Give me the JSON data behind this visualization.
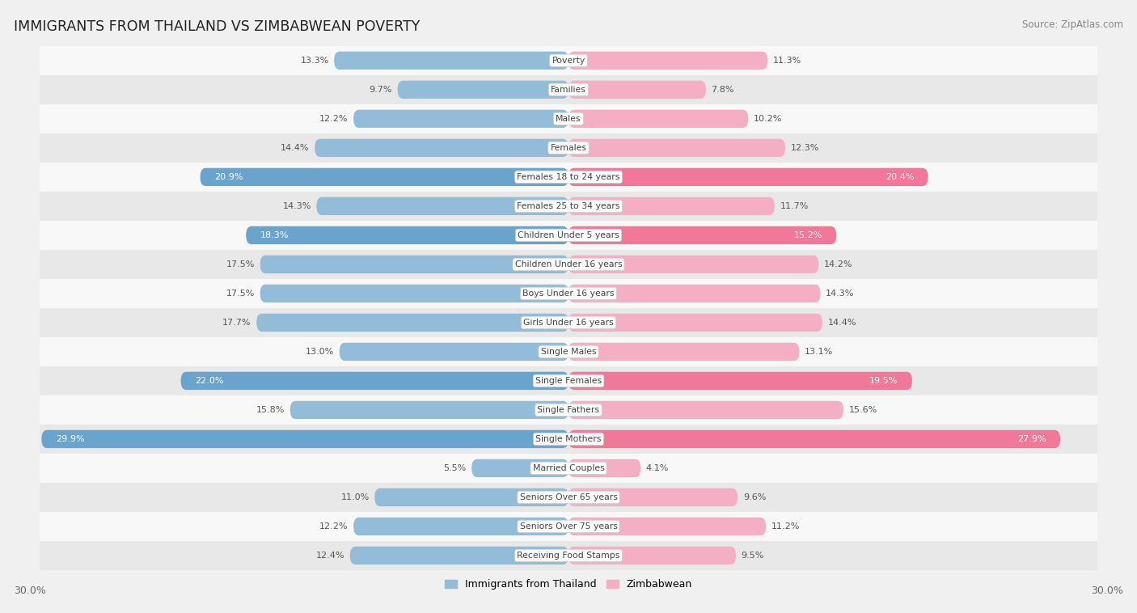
{
  "title": "IMMIGRANTS FROM THAILAND VS ZIMBABWEAN POVERTY",
  "source": "Source: ZipAtlas.com",
  "categories": [
    "Poverty",
    "Families",
    "Males",
    "Females",
    "Females 18 to 24 years",
    "Females 25 to 34 years",
    "Children Under 5 years",
    "Children Under 16 years",
    "Boys Under 16 years",
    "Girls Under 16 years",
    "Single Males",
    "Single Females",
    "Single Fathers",
    "Single Mothers",
    "Married Couples",
    "Seniors Over 65 years",
    "Seniors Over 75 years",
    "Receiving Food Stamps"
  ],
  "thailand_values": [
    13.3,
    9.7,
    12.2,
    14.4,
    20.9,
    14.3,
    18.3,
    17.5,
    17.5,
    17.7,
    13.0,
    22.0,
    15.8,
    29.9,
    5.5,
    11.0,
    12.2,
    12.4
  ],
  "zimbabwe_values": [
    11.3,
    7.8,
    10.2,
    12.3,
    20.4,
    11.7,
    15.2,
    14.2,
    14.3,
    14.4,
    13.1,
    19.5,
    15.6,
    27.9,
    4.1,
    9.6,
    11.2,
    9.5
  ],
  "thailand_color": "#92bcd8",
  "zimbabwe_color": "#f5afc4",
  "thailand_highlight_color": "#6aa3cc",
  "zimbabwe_highlight_color": "#f07898",
  "highlight_rows": [
    4,
    6,
    11,
    13
  ],
  "bg_color": "#f0f0f0",
  "row_bg_even": "#e8e8e8",
  "row_bg_odd": "#f8f8f8",
  "axis_max": 30.0,
  "legend_labels": [
    "Immigrants from Thailand",
    "Zimbabwean"
  ],
  "bottom_axis_label": "30.0%",
  "value_fontsize": 8.0,
  "category_fontsize": 7.8
}
